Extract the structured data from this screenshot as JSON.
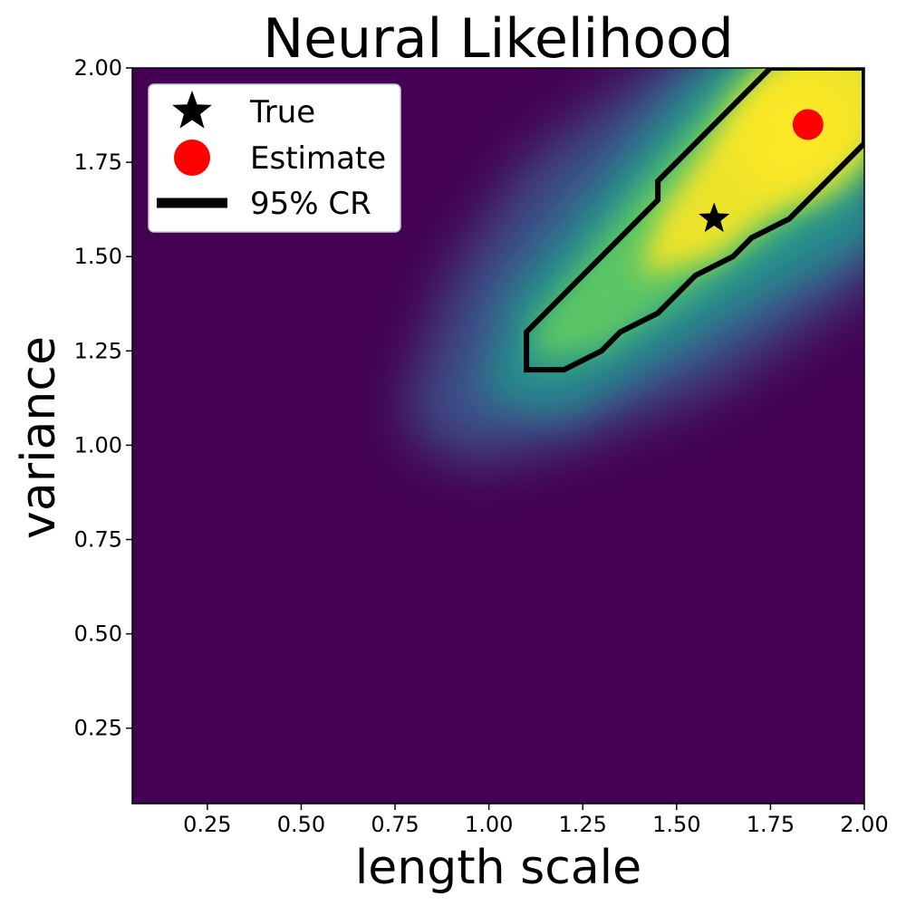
{
  "chart_data": {
    "type": "heatmap",
    "title": "Neural Likelihood",
    "xlabel": "length scale",
    "ylabel": "variance",
    "xlim": [
      0.05,
      2.0
    ],
    "ylim": [
      0.05,
      2.0
    ],
    "xticks": [
      {
        "value": 0.25,
        "label": "0.25"
      },
      {
        "value": 0.5,
        "label": "0.50"
      },
      {
        "value": 0.75,
        "label": "0.75"
      },
      {
        "value": 1.0,
        "label": "1.00"
      },
      {
        "value": 1.25,
        "label": "1.25"
      },
      {
        "value": 1.5,
        "label": "1.50"
      },
      {
        "value": 1.75,
        "label": "1.75"
      },
      {
        "value": 2.0,
        "label": "2.00"
      }
    ],
    "yticks": [
      {
        "value": 0.25,
        "label": "0.25"
      },
      {
        "value": 0.5,
        "label": "0.50"
      },
      {
        "value": 0.75,
        "label": "0.75"
      },
      {
        "value": 1.0,
        "label": "1.00"
      },
      {
        "value": 1.25,
        "label": "1.25"
      },
      {
        "value": 1.5,
        "label": "1.50"
      },
      {
        "value": 1.75,
        "label": "1.75"
      },
      {
        "value": 2.0,
        "label": "2.00"
      }
    ],
    "colormap": "viridis",
    "colormap_stops": [
      "#440154",
      "#3b528b",
      "#21918c",
      "#5ec962",
      "#fde725"
    ],
    "background_color": "#440154",
    "grid": false,
    "legend_position": "top-left",
    "legend": [
      {
        "label": "True",
        "marker": "star",
        "color": "#000000"
      },
      {
        "label": "Estimate",
        "marker": "circle",
        "color": "#ff0000"
      },
      {
        "label": "95% CR",
        "marker": "line",
        "color": "#000000"
      }
    ],
    "true_point": {
      "x": 1.6,
      "y": 1.6
    },
    "estimate_point": {
      "x": 1.85,
      "y": 1.85
    },
    "confidence_region": [
      [
        1.1,
        1.2
      ],
      [
        1.2,
        1.2
      ],
      [
        1.3,
        1.25
      ],
      [
        1.35,
        1.3
      ],
      [
        1.45,
        1.35
      ],
      [
        1.55,
        1.45
      ],
      [
        1.65,
        1.5
      ],
      [
        1.7,
        1.55
      ],
      [
        1.8,
        1.6
      ],
      [
        2.0,
        1.8
      ],
      [
        2.0,
        2.0
      ],
      [
        1.75,
        2.0
      ],
      [
        1.45,
        1.7
      ],
      [
        1.45,
        1.65
      ],
      [
        1.1,
        1.3
      ]
    ]
  }
}
